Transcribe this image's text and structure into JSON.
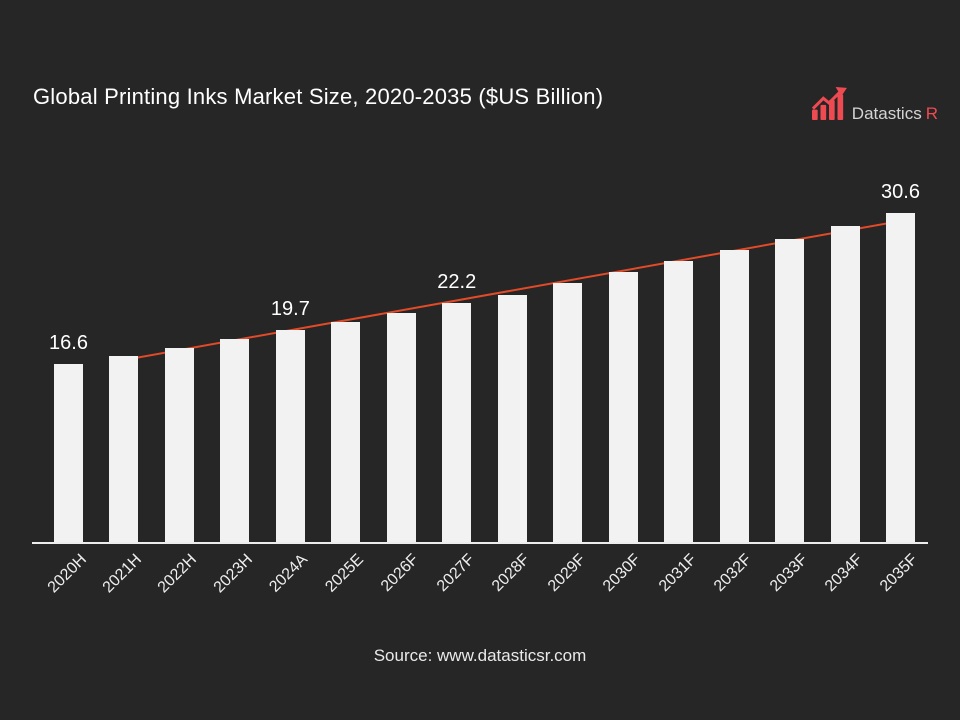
{
  "slide": {
    "title": "Global Printing Inks Market Size, 2020-2035 ($US Billion)",
    "source": "Source: www.datasticsr.com",
    "background_color": "#262626"
  },
  "logo": {
    "brand": "Datastics",
    "brand_suffix": "R",
    "icon": "rising-bar-chart-arrow-icon",
    "accent_color": "#ee4a52",
    "text_color": "#d4d4d4"
  },
  "chart_data": {
    "type": "bar",
    "title": "Global Printing Inks Market Size, 2020-2035 ($US Billion)",
    "unit": "$US Billion",
    "categories": [
      "2020H",
      "2021H",
      "2022H",
      "2023H",
      "2024A",
      "2025E",
      "2026F",
      "2027F",
      "2028F",
      "2029F",
      "2030F",
      "2031F",
      "2032F",
      "2033F",
      "2034F",
      "2035F"
    ],
    "values": [
      16.6,
      17.3,
      18.0,
      18.9,
      19.7,
      20.5,
      21.3,
      22.2,
      23.0,
      24.1,
      25.1,
      26.1,
      27.2,
      28.2,
      29.4,
      30.6
    ],
    "data_labels": [
      {
        "category": "2020H",
        "text": "16.6"
      },
      {
        "category": "2024A",
        "text": "19.7"
      },
      {
        "category": "2027F",
        "text": "22.2"
      },
      {
        "category": "2035F",
        "text": "30.6"
      }
    ],
    "trendline": {
      "from": "2021H",
      "to": "2035F",
      "color": "#e34a28"
    },
    "bar_color": "#f2f2f2",
    "axis_line_color": "#ededed",
    "tick_label_color": "#efefef",
    "data_label_color": "#ffffff",
    "ylim": [
      0,
      32
    ],
    "grid": false,
    "legend": "none"
  }
}
